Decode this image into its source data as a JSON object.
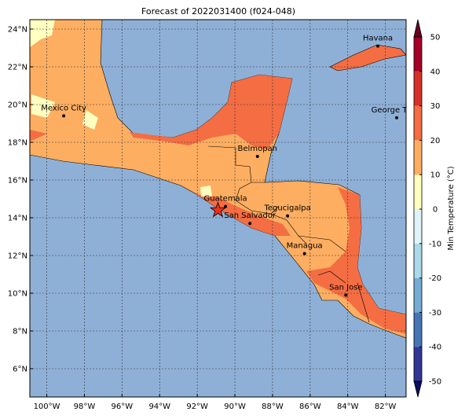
{
  "title": "Forecast of 2022031400 (f024-048)",
  "map": {
    "xlim": [
      -100.9,
      -80.9
    ],
    "ylim": [
      4.5,
      24.5
    ],
    "xticks": [
      {
        "value": -100,
        "label": "100°W"
      },
      {
        "value": -98,
        "label": "98°W"
      },
      {
        "value": -96,
        "label": "96°W"
      },
      {
        "value": -94,
        "label": "94°W"
      },
      {
        "value": -92,
        "label": "92°W"
      },
      {
        "value": -90,
        "label": "90°W"
      },
      {
        "value": -88,
        "label": "88°W"
      },
      {
        "value": -86,
        "label": "86°W"
      },
      {
        "value": -84,
        "label": "84°W"
      },
      {
        "value": -82,
        "label": "82°W"
      }
    ],
    "yticks": [
      {
        "value": 6,
        "label": "6°N"
      },
      {
        "value": 8,
        "label": "8°N"
      },
      {
        "value": 10,
        "label": "10°N"
      },
      {
        "value": 12,
        "label": "12°N"
      },
      {
        "value": 14,
        "label": "14°N"
      },
      {
        "value": 16,
        "label": "16°N"
      },
      {
        "value": 18,
        "label": "18°N"
      },
      {
        "value": 20,
        "label": "20°N"
      },
      {
        "value": 22,
        "label": "22°N"
      },
      {
        "value": 24,
        "label": "24°N"
      }
    ],
    "cities": [
      {
        "name": "Havana",
        "lon": -82.4,
        "lat": 23.1
      },
      {
        "name": "Mexico City",
        "lon": -99.1,
        "lat": 19.4
      },
      {
        "name": "George Town",
        "lon": -81.4,
        "lat": 19.3
      },
      {
        "name": "Belmopan",
        "lon": -88.8,
        "lat": 17.25
      },
      {
        "name": "Guatemala",
        "lon": -90.5,
        "lat": 14.6
      },
      {
        "name": "San Salvador",
        "lon": -89.2,
        "lat": 13.7
      },
      {
        "name": "Tegucigalpa",
        "lon": -87.2,
        "lat": 14.1
      },
      {
        "name": "Managua",
        "lon": -86.3,
        "lat": 12.1
      },
      {
        "name": "San Jose",
        "lon": -84.1,
        "lat": 9.9
      }
    ],
    "star": {
      "lon": -90.9,
      "lat": 14.4
    }
  },
  "colorbar": {
    "label": "Min Temperature (°C)",
    "lim": [
      -50,
      50
    ],
    "ticks": [
      -50,
      -40,
      -30,
      -20,
      -10,
      0,
      10,
      20,
      30,
      40,
      50
    ],
    "levels": [
      -50,
      -40,
      -30,
      -20,
      -10,
      0,
      10,
      20,
      30,
      40,
      50
    ],
    "colors": [
      "#313695",
      "#4575b4",
      "#74add1",
      "#abd9e9",
      "#e0f3f8",
      "#ffffbf",
      "#fdae61",
      "#f46d43",
      "#d73027",
      "#a50026"
    ],
    "under_color": "#0c0c5e",
    "over_color": "#67001f"
  }
}
